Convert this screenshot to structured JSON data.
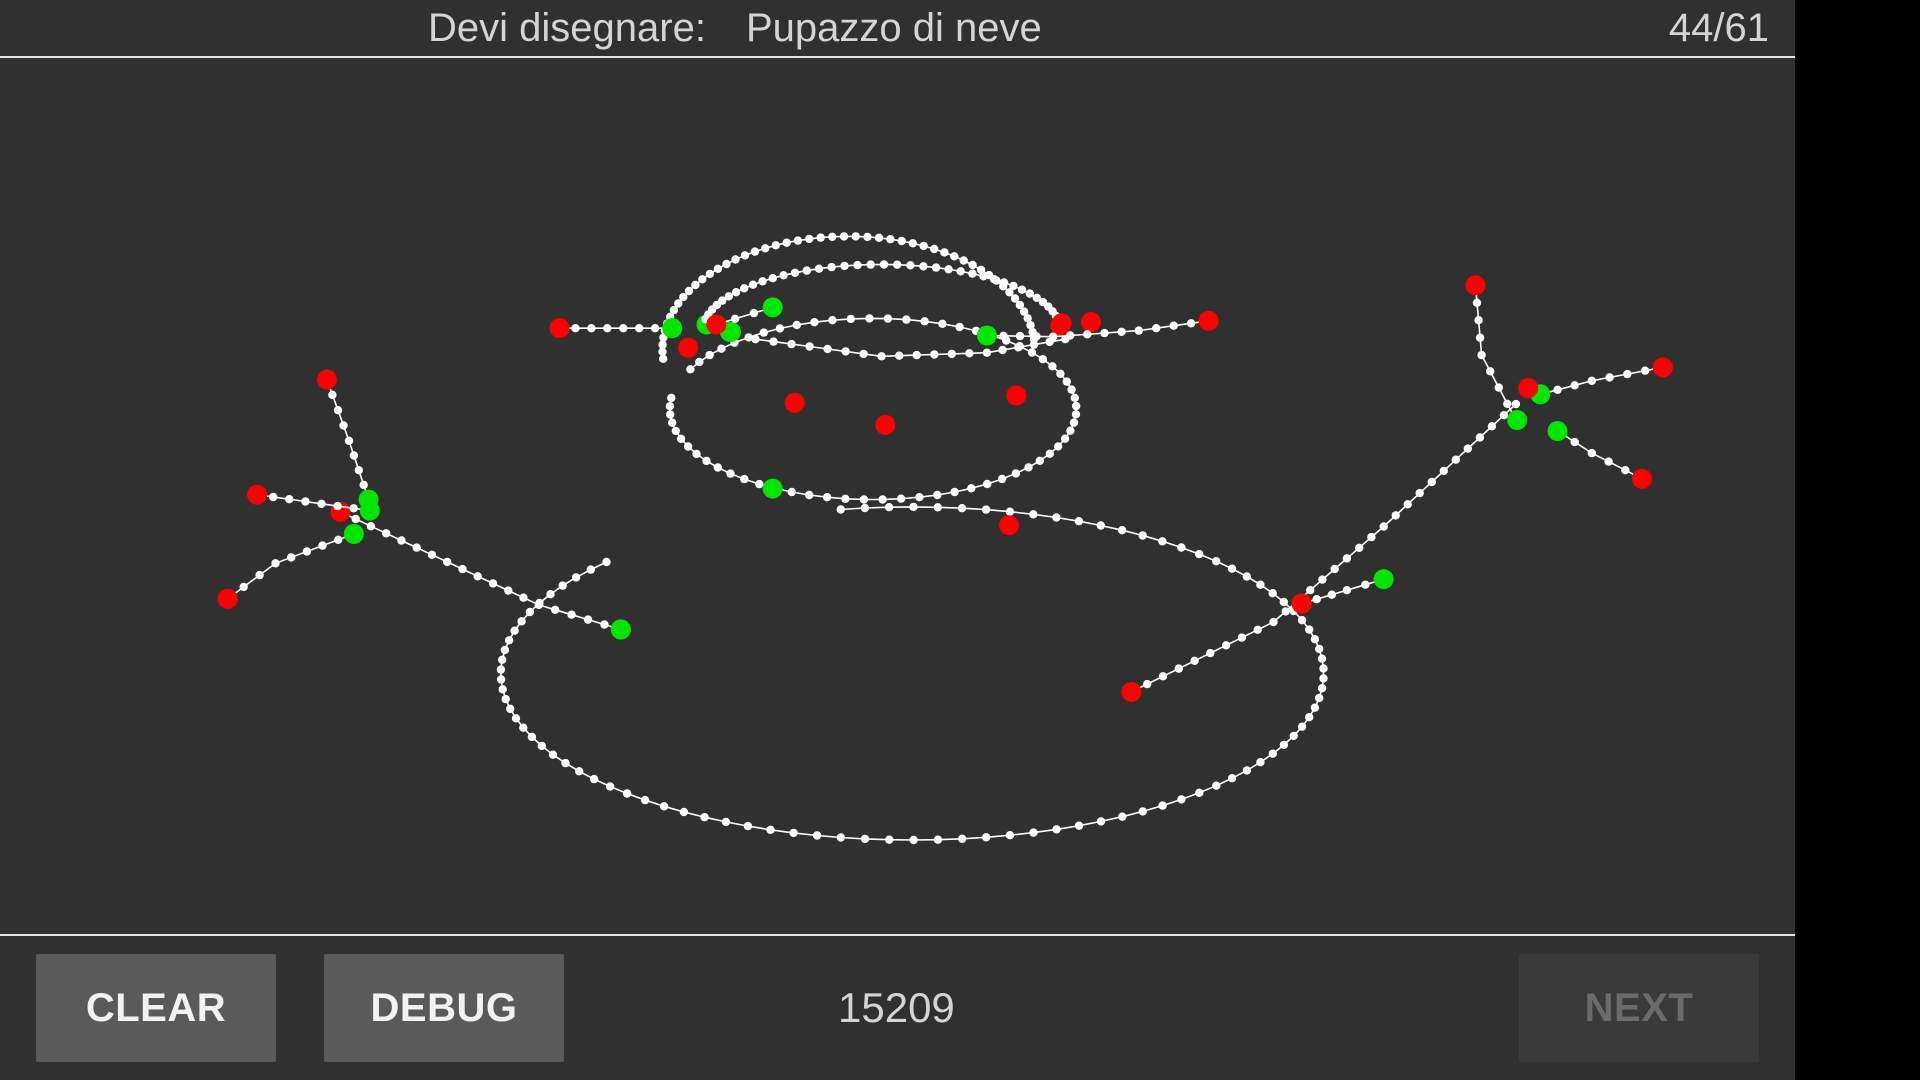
{
  "header": {
    "prompt_label": "Devi disegnare:",
    "prompt_word": "Pupazzo di neve",
    "counter": "44/61"
  },
  "footer": {
    "clear_label": "CLEAR",
    "debug_label": "DEBUG",
    "score": "15209",
    "next_label": "NEXT"
  },
  "colors": {
    "background": "#303030",
    "stroke": "#ffffff",
    "stroke_start": "#ff0000",
    "stroke_end": "#00e600",
    "divider": "#e6e6e6"
  }
}
